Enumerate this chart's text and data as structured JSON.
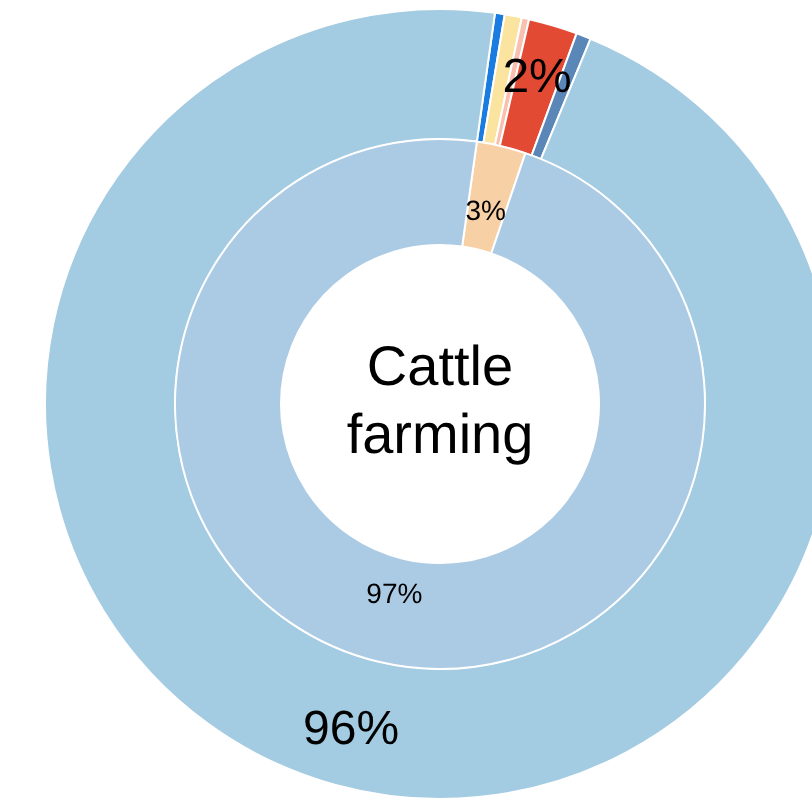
{
  "chart_data": [
    {
      "type": "donut",
      "categories": [
        null,
        null,
        null,
        null,
        null,
        null
      ],
      "values": [
        0.4,
        0.7,
        0.3,
        2,
        0.6,
        96
      ],
      "colors": [
        "#1a7be0",
        "#fbe3a0",
        "#f9c0b0",
        "#e34a33",
        "#5b86b8",
        "#a3cbe1"
      ],
      "value_labels": [
        null,
        null,
        null,
        "2%",
        null,
        "96%"
      ]
    },
    {
      "type": "donut",
      "title": "Cattle farming",
      "categories": [
        null,
        null
      ],
      "values": [
        3,
        97
      ],
      "colors": [
        "#f7d1a5",
        "#abcbe5"
      ],
      "value_labels": [
        "3%",
        "97%"
      ]
    }
  ]
}
